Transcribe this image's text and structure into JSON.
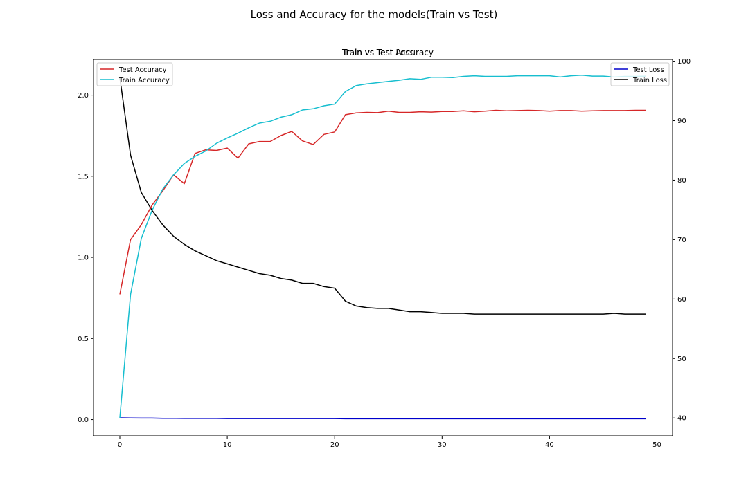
{
  "figure": {
    "suptitle": "Loss and Accuracy for the models(Train vs Test)",
    "overlapping_titles": [
      "Train vs Test Loss",
      "Train vs Test Accuracy"
    ]
  },
  "chart_data": {
    "type": "line",
    "x_ticks": [
      0,
      10,
      20,
      30,
      40,
      50
    ],
    "xlim": [
      -2.45,
      51.45
    ],
    "left_axis": {
      "ylim": [
        -0.1,
        2.22
      ],
      "ticks": [
        "0.0",
        "0.5",
        "1.0",
        "1.5",
        "2.0"
      ],
      "tick_values": [
        0,
        0.5,
        1,
        1.5,
        2
      ]
    },
    "right_axis": {
      "ylim": [
        37,
        100.3
      ],
      "ticks": [
        "40",
        "50",
        "60",
        "70",
        "80",
        "90",
        "100"
      ],
      "tick_values": [
        40,
        50,
        60,
        70,
        80,
        90,
        100
      ]
    },
    "legend_left": [
      "Test Accuracy",
      "Train Accuracy"
    ],
    "legend_right": [
      "Test Loss",
      "Train Loss"
    ],
    "series": [
      {
        "name": "Train Loss",
        "axis": "left",
        "color": "#000000",
        "x": [
          0,
          1,
          2,
          3,
          4,
          5,
          6,
          7,
          8,
          9,
          10,
          11,
          12,
          13,
          14,
          15,
          16,
          17,
          18,
          19,
          20,
          21,
          22,
          23,
          24,
          25,
          26,
          27,
          28,
          29,
          30,
          31,
          32,
          33,
          34,
          35,
          36,
          37,
          38,
          39,
          40,
          41,
          42,
          43,
          44,
          45,
          46,
          47,
          48,
          49
        ],
        "values": [
          2.11,
          1.63,
          1.4,
          1.29,
          1.2,
          1.13,
          1.08,
          1.04,
          1.01,
          0.98,
          0.96,
          0.94,
          0.92,
          0.9,
          0.89,
          0.87,
          0.86,
          0.84,
          0.84,
          0.82,
          0.81,
          0.73,
          0.7,
          0.69,
          0.685,
          0.685,
          0.675,
          0.665,
          0.665,
          0.66,
          0.655,
          0.655,
          0.655,
          0.65,
          0.65,
          0.65,
          0.65,
          0.65,
          0.65,
          0.65,
          0.65,
          0.65,
          0.65,
          0.65,
          0.65,
          0.65,
          0.655,
          0.65,
          0.65,
          0.65
        ]
      },
      {
        "name": "Test Loss",
        "axis": "left",
        "color": "#0000cc",
        "x": [
          0,
          1,
          2,
          3,
          4,
          5,
          6,
          7,
          8,
          9,
          10,
          11,
          12,
          13,
          14,
          15,
          16,
          17,
          18,
          19,
          20,
          21,
          22,
          23,
          24,
          25,
          26,
          27,
          28,
          29,
          30,
          31,
          32,
          33,
          34,
          35,
          36,
          37,
          38,
          39,
          40,
          41,
          42,
          43,
          44,
          45,
          46,
          47,
          48,
          49
        ],
        "values": [
          0.011,
          0.01,
          0.009,
          0.009,
          0.008,
          0.008,
          0.007,
          0.007,
          0.007,
          0.007,
          0.006,
          0.006,
          0.006,
          0.006,
          0.006,
          0.006,
          0.006,
          0.006,
          0.006,
          0.006,
          0.006,
          0.005,
          0.005,
          0.005,
          0.005,
          0.005,
          0.005,
          0.005,
          0.005,
          0.005,
          0.005,
          0.005,
          0.005,
          0.005,
          0.005,
          0.005,
          0.005,
          0.005,
          0.005,
          0.005,
          0.005,
          0.005,
          0.005,
          0.005,
          0.005,
          0.005,
          0.005,
          0.005,
          0.005,
          0.005
        ]
      },
      {
        "name": "Test Accuracy",
        "axis": "right",
        "color": "#d62728",
        "x": [
          0,
          1,
          2,
          3,
          4,
          5,
          6,
          7,
          8,
          9,
          10,
          11,
          12,
          13,
          14,
          15,
          16,
          17,
          18,
          19,
          20,
          21,
          22,
          23,
          24,
          25,
          26,
          27,
          28,
          29,
          30,
          31,
          32,
          33,
          34,
          35,
          36,
          37,
          38,
          39,
          40,
          41,
          42,
          43,
          44,
          45,
          46,
          47,
          48,
          49
        ],
        "values": [
          60.8,
          70.0,
          72.5,
          75.8,
          78.2,
          80.9,
          79.4,
          84.5,
          85.1,
          85.0,
          85.4,
          83.7,
          86.1,
          86.5,
          86.5,
          87.5,
          88.2,
          86.6,
          86.0,
          87.7,
          88.1,
          91.0,
          91.3,
          91.4,
          91.35,
          91.6,
          91.4,
          91.4,
          91.5,
          91.45,
          91.55,
          91.55,
          91.65,
          91.5,
          91.6,
          91.75,
          91.65,
          91.7,
          91.75,
          91.7,
          91.6,
          91.7,
          91.7,
          91.6,
          91.65,
          91.7,
          91.7,
          91.7,
          91.75,
          91.75
        ]
      },
      {
        "name": "Train Accuracy",
        "axis": "right",
        "color": "#17becf",
        "x": [
          0,
          1,
          2,
          3,
          4,
          5,
          6,
          7,
          8,
          9,
          10,
          11,
          12,
          13,
          14,
          15,
          16,
          17,
          18,
          19,
          20,
          21,
          22,
          23,
          24,
          25,
          26,
          27,
          28,
          29,
          30,
          31,
          32,
          33,
          34,
          35,
          36,
          37,
          38,
          39,
          40,
          41,
          42,
          43,
          44,
          45,
          46,
          47,
          48,
          49
        ],
        "values": [
          40.0,
          60.8,
          70.2,
          74.9,
          78.5,
          80.9,
          82.8,
          84.0,
          84.9,
          86.2,
          87.1,
          87.9,
          88.8,
          89.6,
          89.9,
          90.6,
          91.0,
          91.8,
          92.0,
          92.5,
          92.8,
          94.9,
          95.9,
          96.2,
          96.4,
          96.6,
          96.8,
          97.05,
          96.95,
          97.3,
          97.3,
          97.25,
          97.45,
          97.55,
          97.45,
          97.45,
          97.45,
          97.55,
          97.55,
          97.55,
          97.55,
          97.35,
          97.55,
          97.65,
          97.5,
          97.5,
          97.35,
          97.45,
          97.45,
          97.5
        ]
      }
    ]
  }
}
